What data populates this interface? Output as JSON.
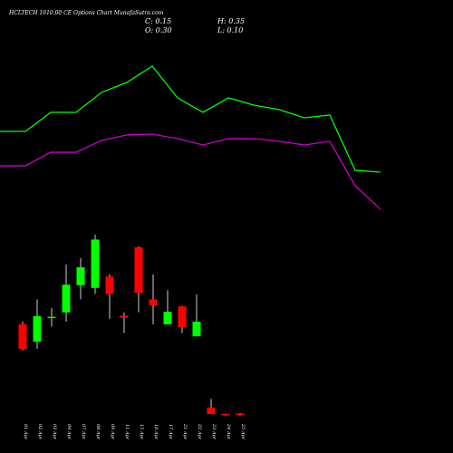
{
  "chart_data": {
    "type": "candlestick",
    "title": "HCLTECH 1610.00 CE Options Chart MunafaSutra.com",
    "ohlc_labels": [
      "C: 0.15",
      "H: 0.35",
      "O: 0.30",
      "L: 0.10"
    ],
    "categories": [
      "01 Apr",
      "02 Apr",
      "03 Apr",
      "04 Apr",
      "07 Apr",
      "08 Apr",
      "09 Apr",
      "11 Apr",
      "15 Apr",
      "16 Apr",
      "17 Apr",
      "21 Apr",
      "22 Apr",
      "23 Apr",
      "24 Apr",
      "25 Apr"
    ],
    "open": [
      8.5,
      6.9,
      9.1,
      9.6,
      12.1,
      11.85,
      12.9,
      9.3,
      15.6,
      10.8,
      8.5,
      10.15,
      7.4,
      0.85,
      0.25,
      0.3
    ],
    "high": [
      8.75,
      10.8,
      10,
      14,
      14.6,
      16.75,
      13.1,
      9.6,
      15.7,
      13.1,
      11.65,
      10.2,
      11.25,
      1.65,
      0.3,
      0.35
    ],
    "low": [
      6.1,
      6.25,
      8.3,
      8.75,
      10.8,
      11.3,
      9,
      7.7,
      9.6,
      8.5,
      8.5,
      7.7,
      7.4,
      0.25,
      0.1,
      0.1
    ],
    "close": [
      6.25,
      9.25,
      9.2,
      12.15,
      13.75,
      16.3,
      11.3,
      9.1,
      11.4,
      10.25,
      9.65,
      8.25,
      8.75,
      0.25,
      0.15,
      0.15
    ],
    "up_color": "#00ff00",
    "down_color": "#ff0000",
    "series": [
      {
        "color": "#00ff00",
        "values": [
          26.25,
          26.25,
          28,
          28,
          29.83,
          30.75,
          32.25,
          29.33,
          28,
          29.33,
          28.67,
          28.25,
          27.5,
          27.75,
          22.67,
          22.5
        ]
      },
      {
        "color": "#cc00cc",
        "values": [
          23.08,
          23.08,
          24.33,
          24.33,
          25.42,
          25.92,
          26,
          25.58,
          25,
          25.58,
          25.58,
          25.33,
          25,
          25.33,
          21.25,
          19.08
        ]
      }
    ],
    "ylim": [
      0,
      35
    ]
  }
}
